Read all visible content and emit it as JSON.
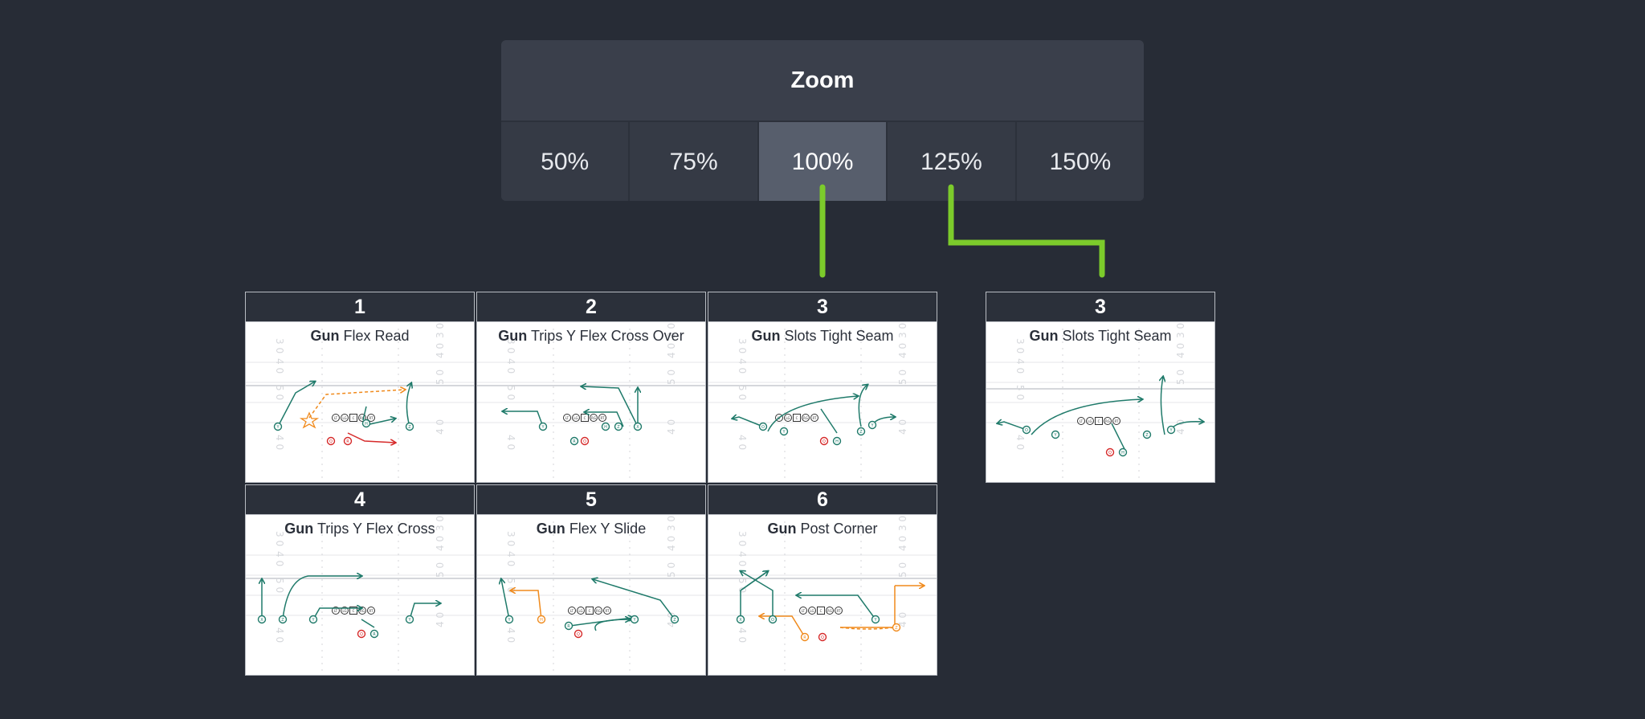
{
  "zoom": {
    "title": "Zoom",
    "options": [
      "50%",
      "75%",
      "100%",
      "125%",
      "150%"
    ],
    "selected": "100%"
  },
  "plays": [
    {
      "number": "1",
      "formation": "Gun",
      "name": "Flex Read"
    },
    {
      "number": "2",
      "formation": "Gun",
      "name": "Trips Y Flex Cross Over"
    },
    {
      "number": "3",
      "formation": "Gun",
      "name": "Slots Tight Seam"
    },
    {
      "number": "4",
      "formation": "Gun",
      "name": "Trips Y Flex Cross"
    },
    {
      "number": "5",
      "formation": "Gun",
      "name": "Flex Y Slide"
    },
    {
      "number": "6",
      "formation": "Gun",
      "name": "Post Corner"
    }
  ],
  "preview": {
    "number": "3",
    "formation": "Gun",
    "name": "Slots Tight Seam"
  },
  "colors": {
    "route": "#1f7a6a",
    "option_route": "#f08a1c",
    "defender": "#d62a2a",
    "connector": "#7ccb2b"
  }
}
